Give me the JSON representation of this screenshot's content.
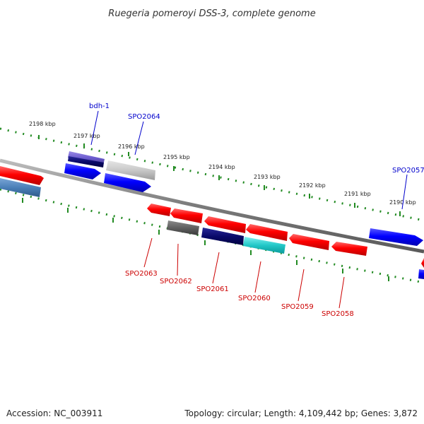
{
  "title": "Ruegeria pomeroyi DSS-3, complete genome",
  "footer": {
    "accession": "Accession: NC_003911",
    "info": "Topology: circular; Length: 4,109,442 bp; Genes: 3,872"
  },
  "colors": {
    "backbone": "#808080",
    "tick_dots": "#228b22",
    "plus_label": "#0000cc",
    "minus_label": "#cc0000"
  },
  "scale_labels": [
    "2198 kbp",
    "2197 kbp",
    "2196 kbp",
    "2195 kbp",
    "2194 kbp",
    "2193 kbp",
    "2192 kbp",
    "2191 kbp",
    "2190 kbp"
  ],
  "gene_labels": {
    "plus": [
      "bdh-1",
      "SPO2064",
      "SPO2057"
    ],
    "minus": [
      "SPO2063",
      "SPO2062",
      "SPO2061",
      "SPO2060",
      "SPO2059",
      "SPO2058"
    ]
  }
}
